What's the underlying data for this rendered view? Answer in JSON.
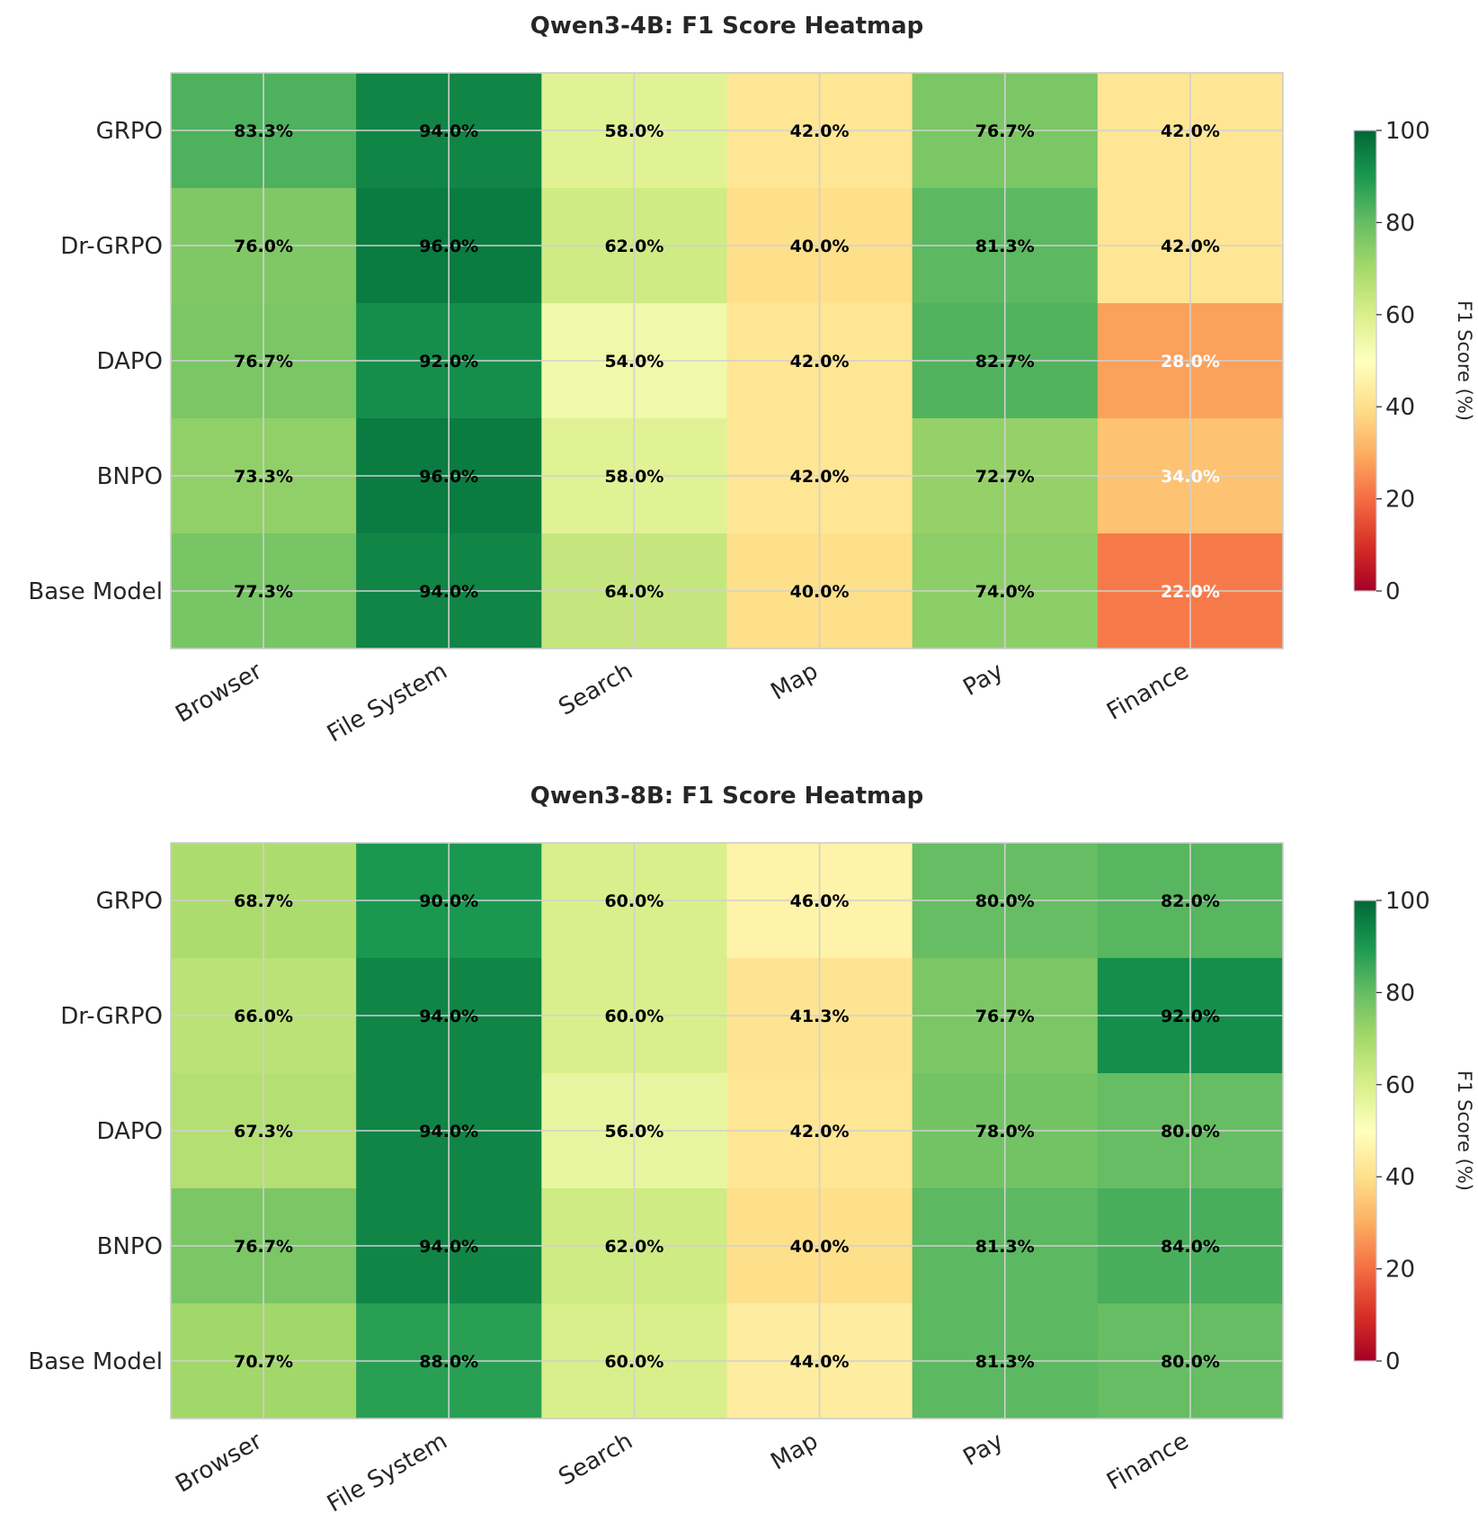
{
  "chart_data": [
    {
      "type": "heatmap",
      "title": "Qwen3-4B: F1 Score Heatmap",
      "rows": [
        "GRPO",
        "Dr-GRPO",
        "DAPO",
        "BNPO",
        "Base Model"
      ],
      "columns": [
        "Browser",
        "File System",
        "Search",
        "Map",
        "Pay",
        "Finance"
      ],
      "values": [
        [
          83.3,
          94.0,
          58.0,
          42.0,
          76.7,
          42.0
        ],
        [
          76.0,
          96.0,
          62.0,
          40.0,
          81.3,
          42.0
        ],
        [
          76.7,
          92.0,
          54.0,
          42.0,
          82.7,
          28.0
        ],
        [
          73.3,
          96.0,
          58.0,
          42.0,
          72.7,
          34.0
        ],
        [
          77.3,
          94.0,
          64.0,
          40.0,
          74.0,
          22.0
        ]
      ],
      "value_format_suffix": "%",
      "colorbar": {
        "label": "F1 Score (%)",
        "min": 0,
        "max": 100,
        "ticks": [
          0,
          20,
          40,
          60,
          80,
          100
        ],
        "colormap": "RdYlGn"
      },
      "grid": true
    },
    {
      "type": "heatmap",
      "title": "Qwen3-8B: F1 Score Heatmap",
      "rows": [
        "GRPO",
        "Dr-GRPO",
        "DAPO",
        "BNPO",
        "Base Model"
      ],
      "columns": [
        "Browser",
        "File System",
        "Search",
        "Map",
        "Pay",
        "Finance"
      ],
      "values": [
        [
          68.7,
          90.0,
          60.0,
          46.0,
          80.0,
          82.0
        ],
        [
          66.0,
          94.0,
          60.0,
          41.3,
          76.7,
          92.0
        ],
        [
          67.3,
          94.0,
          56.0,
          42.0,
          78.0,
          80.0
        ],
        [
          76.7,
          94.0,
          62.0,
          40.0,
          81.3,
          84.0
        ],
        [
          70.7,
          88.0,
          60.0,
          44.0,
          81.3,
          80.0
        ]
      ],
      "value_format_suffix": "%",
      "colorbar": {
        "label": "F1 Score (%)",
        "min": 0,
        "max": 100,
        "ticks": [
          0,
          20,
          40,
          60,
          80,
          100
        ],
        "colormap": "RdYlGn"
      },
      "grid": true
    }
  ]
}
